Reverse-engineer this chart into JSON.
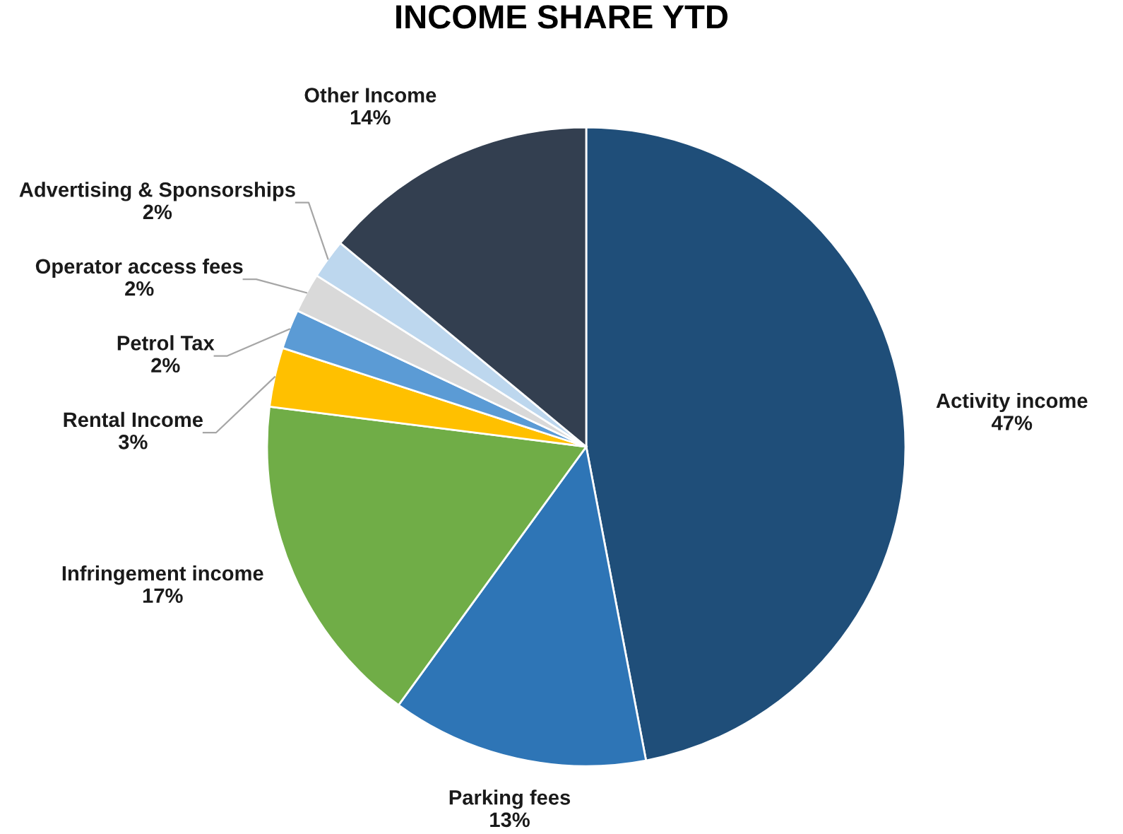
{
  "chart_data": {
    "type": "pie",
    "title": "INCOME SHARE YTD",
    "categories": [
      "Activity income",
      "Parking fees",
      "Infringement income",
      "Rental Income",
      "Petrol Tax",
      "Operator access fees",
      "Advertising & Sponsorships",
      "Other Income"
    ],
    "values": [
      47,
      13,
      17,
      3,
      2,
      2,
      2,
      14
    ],
    "colors": [
      "#1f4e79",
      "#2e75b6",
      "#70ad47",
      "#ffc000",
      "#5b9bd5",
      "#d9d9d9",
      "#bdd7ee",
      "#333f50"
    ],
    "value_labels": [
      "47%",
      "13%",
      "17%",
      "3%",
      "2%",
      "2%",
      "2%",
      "14%"
    ],
    "legend": false
  }
}
